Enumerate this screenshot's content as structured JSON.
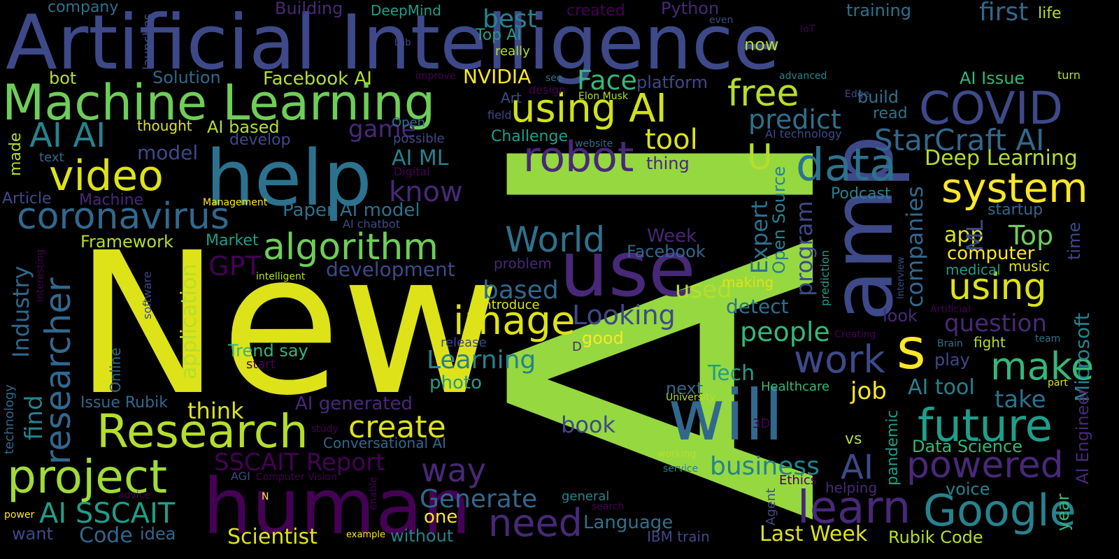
{
  "colors": {
    "background": "#000000",
    "palette": [
      "#440154",
      "#482878",
      "#3e4989",
      "#31688e",
      "#26828e",
      "#1f9e89",
      "#35b779",
      "#6ece58",
      "#b5de2b",
      "#fde725"
    ]
  },
  "words": {
    "ai": "AI",
    "new": "New",
    "artificial_intelligence": "Artificial Intelligence",
    "help": "help",
    "machine_learning": "Machine Learning",
    "use": "use",
    "amp": "amp",
    "human": "human",
    "will": "will",
    "research": "Research",
    "project": "project",
    "using_ai": "using AI",
    "coronavirus": "coronavirus",
    "video": "video",
    "robot": "robot",
    "data": "data",
    "covid": "COVID",
    "system": "system",
    "google": "Google",
    "future": "future",
    "learn": "learn",
    "image": "image",
    "algorithm": "algorithm",
    "researcher": "researcher",
    "need": "need",
    "world": "World",
    "make": "make",
    "work": "work",
    "s": "s",
    "powered": "powered",
    "using": "using",
    "create": "create",
    "ai_ai": "AI AI",
    "ai_sscait": "AI SSCAIT",
    "free": "free",
    "starcraft_ai": "StarCraft AI",
    "sscait_report": "SSCAIT Report",
    "way": "way",
    "u": "U",
    "ai_big": "AI",
    "generate": "Generate",
    "business": "business",
    "predict": "predict",
    "face": "Face",
    "know": "know",
    "tool": "tool",
    "deep_learning": "Deep Learning",
    "learning": "Learning",
    "looking": "Looking",
    "people": "people",
    "top": "Top",
    "industry": "Industry",
    "expert": "Expert",
    "program": "program",
    "companies": "companies",
    "take": "take",
    "gpt": "GPT",
    "based": "based",
    "best": "best",
    "first": "first",
    "question": "question",
    "book": "book",
    "think": "think",
    "used": "used",
    "find": "find",
    "last_week": "Last Week",
    "scientist": "Scientist",
    "code": "Code",
    "language": "Language",
    "job": "job",
    "tech": "Tech",
    "nvidia": "NVIDIA",
    "game": "game",
    "ai_generated": "AI generated",
    "facebook_ai": "Facebook AI",
    "development": "development",
    "application": "application",
    "ai_ml": "AI ML",
    "model": "model",
    "ai_tool": "AI tool",
    "rubik_code": "Rubik Code",
    "microsoft": "Microsoft",
    "open_source": "Open Source",
    "detect": "detect",
    "app": "app",
    "ml": "ML",
    "paper_ai_model": "Paper AI model",
    "computer": "computer",
    "ai_issue": "AI Issue",
    "one": "one",
    "photo": "photo",
    "week": "Week",
    "facebook": "Facebook",
    "data_science": "Data Science",
    "good": "good",
    "trend_say": "Trend say",
    "without": "without",
    "idea": "idea",
    "want": "want",
    "ai_engineer": "AI Engineer",
    "voice": "voice",
    "podcast": "Podcast",
    "startup": "startup",
    "time": "time",
    "year": "year",
    "ai_based": "AI based",
    "solution": "Solution",
    "framework": "Framework",
    "issue_rubik": "Issue Rubik",
    "conversational_ai": "Conversational AI",
    "machine": "Machine",
    "article": "Article",
    "made": "made",
    "training": "training",
    "python": "Python",
    "building": "Building",
    "company": "company",
    "created": "created",
    "deepmind": "DeepMind",
    "top_ai": "Top AI",
    "now": "now",
    "platform": "platform",
    "build": "build",
    "read": "read",
    "challenge": "Challenge",
    "thing": "thing",
    "develop": "develop",
    "thought": "thought",
    "bot": "bot",
    "next": "next",
    "healthcare": "Healthcare",
    "vs": "vs",
    "pandemic": "pandemic",
    "look": "look",
    "fight": "fight",
    "play": "play",
    "music": "music",
    "medical": "medical",
    "market": "Market",
    "making": "making",
    "introduce": "Introduce",
    "release": "release",
    "general": "general",
    "helping": "helping",
    "ethics": "Ethics",
    "agent": "Agent",
    "ibm_train": "IBM train",
    "problem": "problem",
    "art": "Art",
    "open": "Open",
    "possible": "possible",
    "really": "really",
    "life": "life",
    "turn": "turn",
    "text": "text",
    "online": "Online",
    "software": "software",
    "technology": "technology",
    "interesting": "interesting",
    "launches": "launches",
    "management": "Management",
    "intelligent": "intelligent",
    "ai_chatbot": "AI chatbot",
    "digital": "Digital",
    "website": "website",
    "ai_technology": "AI technology",
    "elon_musk": "Elon Musk",
    "design": "design",
    "field": "field",
    "improve": "improve",
    "see": "see",
    "advanced": "advanced",
    "edge": "Edge",
    "iot": "IoT",
    "lab": "Lab",
    "even": "even",
    "start": "start",
    "d": "D",
    "university": "University",
    "working": "working",
    "service": "service",
    "study": "study",
    "three_d": "3D",
    "agi": "AGI",
    "computer_vision": "Computer Vision",
    "n": "N",
    "advice": "advice",
    "power": "power",
    "example": "example",
    "enable": "enable",
    "search": "search",
    "prediction": "prediction",
    "interview": "Interview",
    "artificial": "Artificial",
    "creating": "Creating",
    "brain": "Brain",
    "team": "team",
    "part": "part"
  }
}
